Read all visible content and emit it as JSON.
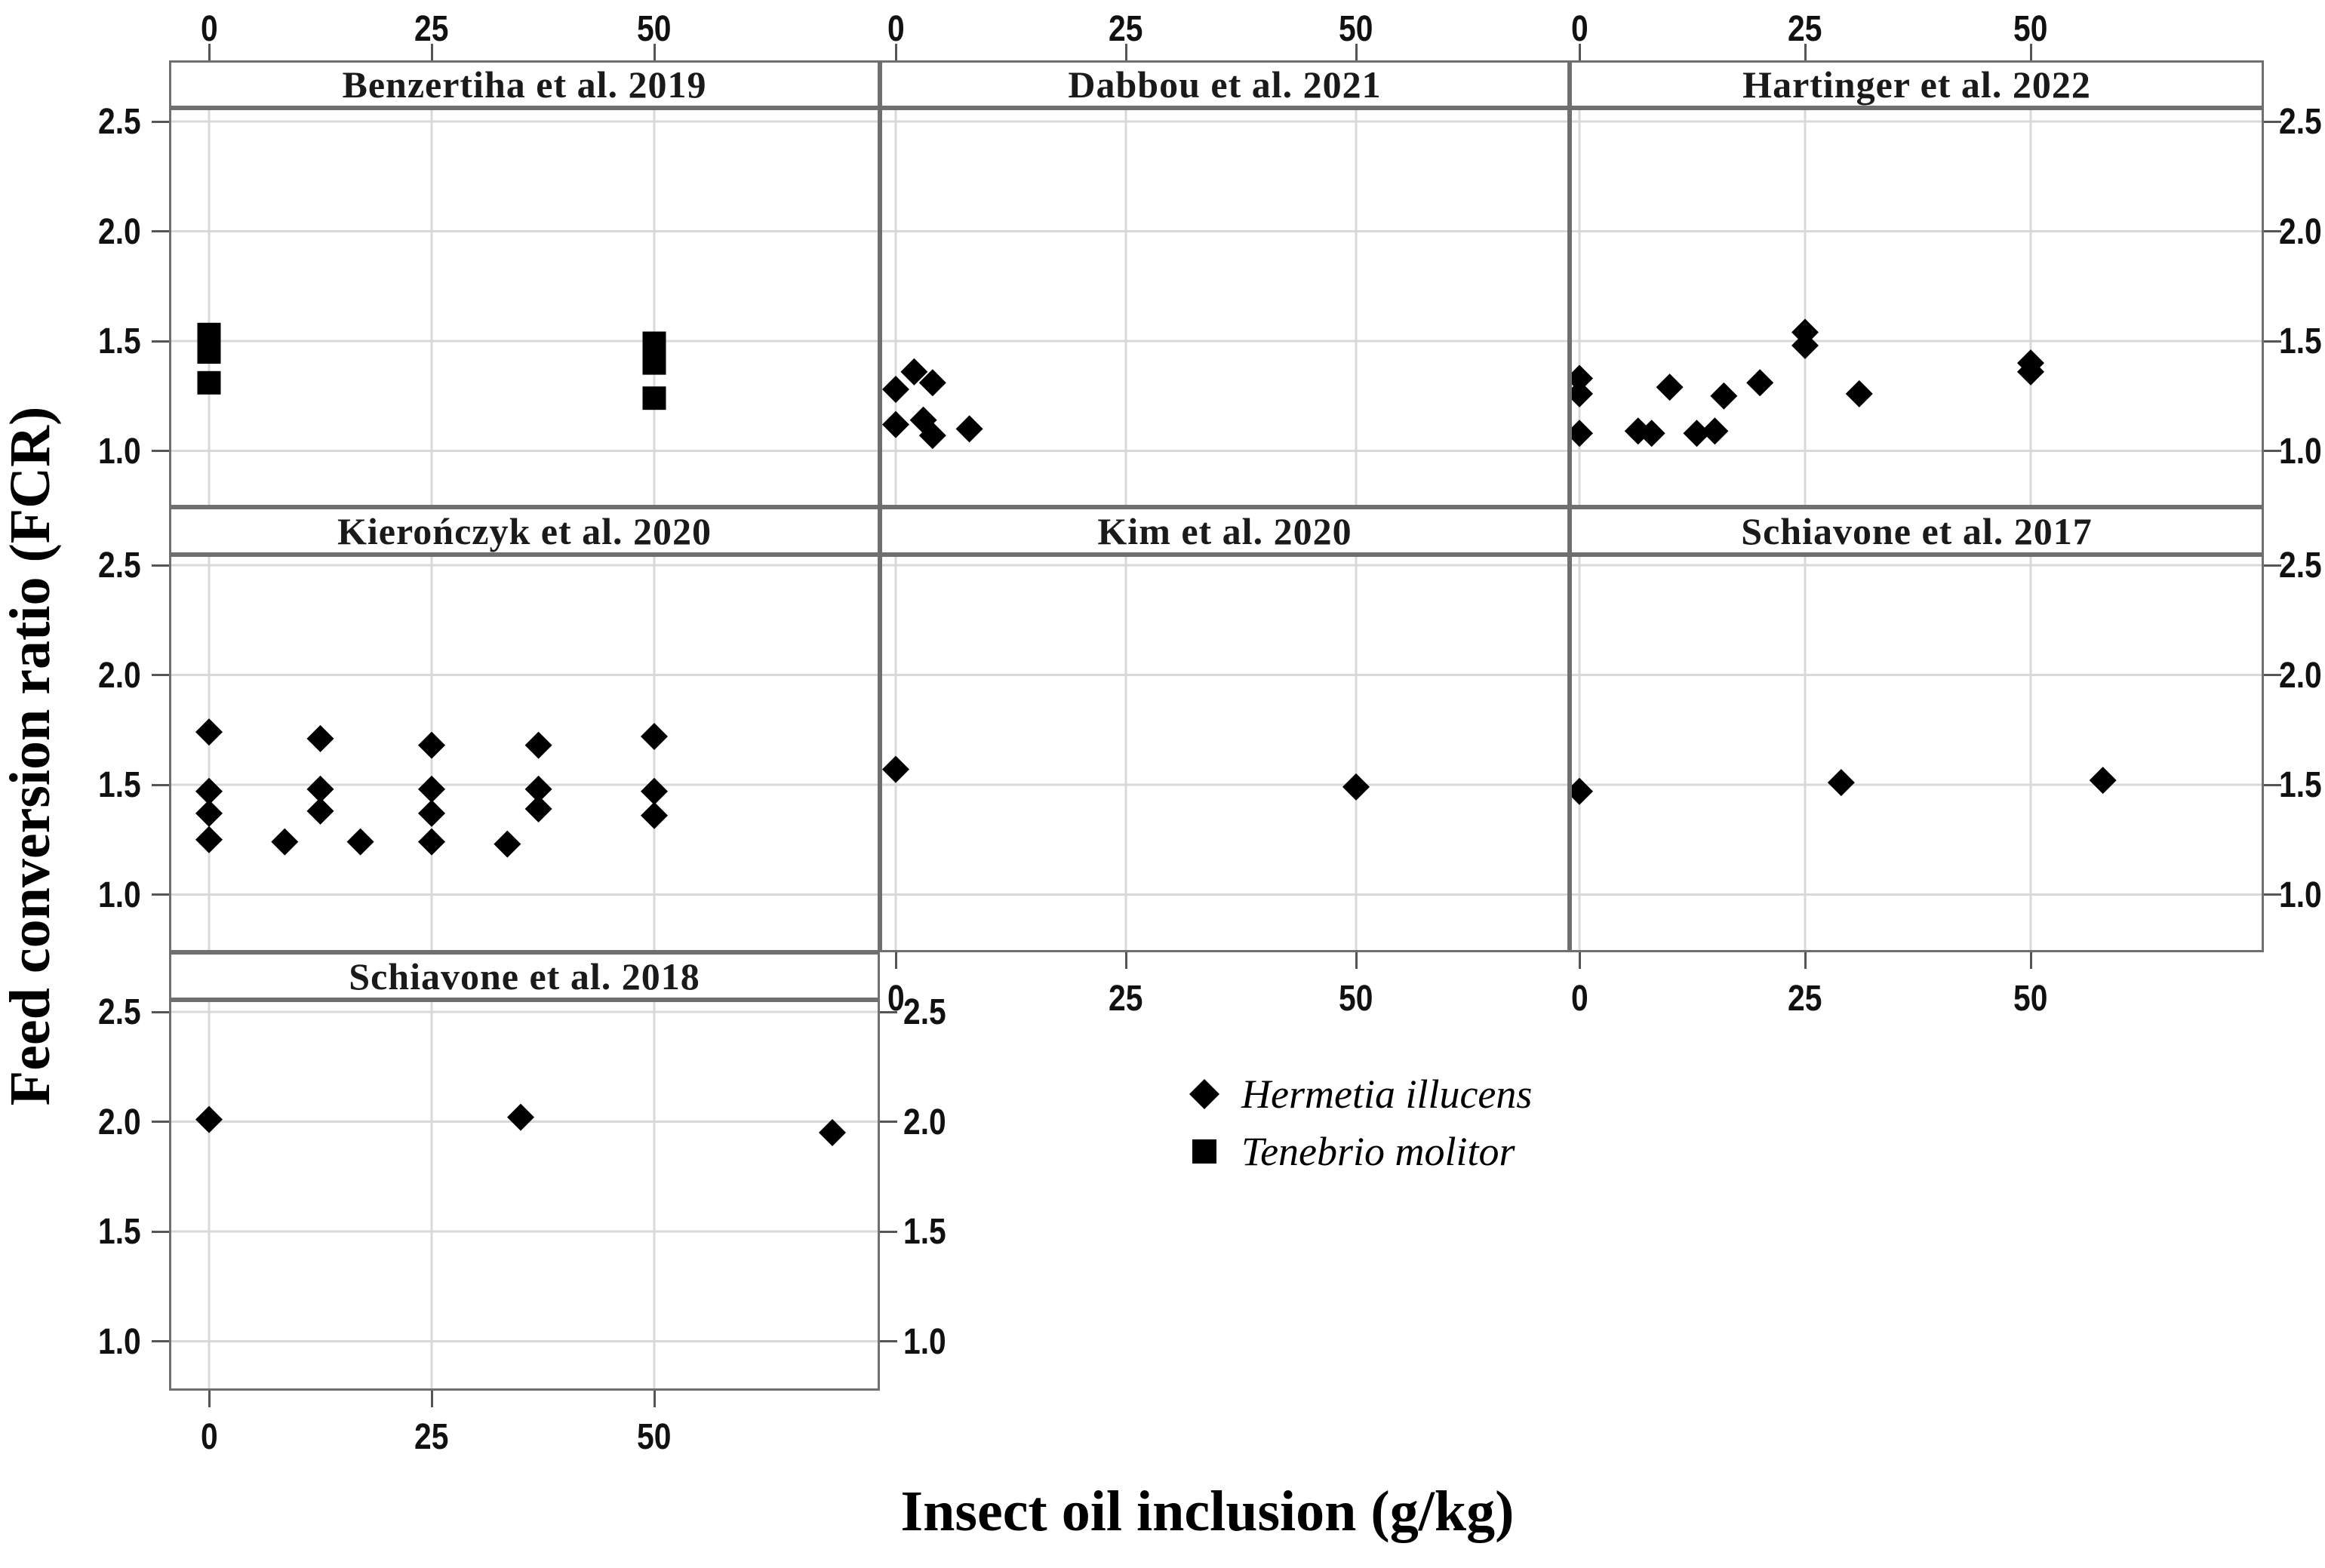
{
  "axes": {
    "x_title": "Insect oil inclusion (g/kg)",
    "y_title": "Feed conversion ratio (FCR)"
  },
  "legend": {
    "items": [
      {
        "label": "Hermetia illucens",
        "marker": "diamond"
      },
      {
        "label": "Tenebrio molitor",
        "marker": "square"
      }
    ]
  },
  "chart_data": {
    "type": "scatter",
    "faceted": true,
    "facet_by": "study",
    "x_label": "Insect oil inclusion (g/kg)",
    "y_label": "Feed conversion ratio (FCR)",
    "x_ticks": [
      {
        "v": 0,
        "label": "0"
      },
      {
        "v": 25,
        "label": "25"
      },
      {
        "v": 50,
        "label": "50"
      }
    ],
    "y_ticks": [
      {
        "v": 2.5,
        "label": "2.5"
      },
      {
        "v": 2.0,
        "label": "2.0"
      },
      {
        "v": 1.5,
        "label": "1.5"
      },
      {
        "v": 1.0,
        "label": "1.0"
      }
    ],
    "x_range": [
      -4.5,
      73
    ],
    "y_range": [
      0.74,
      2.56
    ],
    "grid": true,
    "marker_color": "#000000",
    "gridline_color": "#d9d9d9",
    "species_by_marker": {
      "diamond": "Hermetia illucens",
      "square": "Tenebrio molitor"
    },
    "point_format": [
      "inclusion_g_per_kg",
      "fcr",
      "marker"
    ],
    "panels": [
      {
        "title": "Benzertiha et al. 2019",
        "row": 0,
        "col": 0,
        "points": [
          [
            0,
            1.53,
            "square"
          ],
          [
            0,
            1.45,
            "square"
          ],
          [
            0,
            1.31,
            "square"
          ],
          [
            50,
            1.49,
            "square"
          ],
          [
            50,
            1.4,
            "square"
          ],
          [
            50,
            1.24,
            "square"
          ]
        ]
      },
      {
        "title": "Dabbou et al. 2021",
        "row": 0,
        "col": 1,
        "points": [
          [
            2,
            1.36,
            "diamond"
          ],
          [
            0,
            1.28,
            "diamond"
          ],
          [
            4,
            1.31,
            "diamond"
          ],
          [
            0,
            1.12,
            "diamond"
          ],
          [
            3,
            1.14,
            "diamond"
          ],
          [
            4,
            1.07,
            "diamond"
          ],
          [
            8,
            1.1,
            "diamond"
          ]
        ]
      },
      {
        "title": "Hartinger et al. 2022",
        "row": 0,
        "col": 2,
        "points": [
          [
            0,
            1.33,
            "diamond"
          ],
          [
            0,
            1.26,
            "diamond"
          ],
          [
            0,
            1.08,
            "diamond"
          ],
          [
            6.5,
            1.09,
            "diamond"
          ],
          [
            8,
            1.08,
            "diamond"
          ],
          [
            10,
            1.29,
            "diamond"
          ],
          [
            13,
            1.08,
            "diamond"
          ],
          [
            15,
            1.09,
            "diamond"
          ],
          [
            16,
            1.25,
            "diamond"
          ],
          [
            20,
            1.31,
            "diamond"
          ],
          [
            25,
            1.54,
            "diamond"
          ],
          [
            25,
            1.48,
            "diamond"
          ],
          [
            31,
            1.26,
            "diamond"
          ],
          [
            50,
            1.4,
            "diamond"
          ],
          [
            50,
            1.36,
            "diamond"
          ]
        ]
      },
      {
        "title": "Kierończyk et al. 2020",
        "row": 1,
        "col": 0,
        "points": [
          [
            0,
            1.74,
            "diamond"
          ],
          [
            0,
            1.47,
            "diamond"
          ],
          [
            0,
            1.37,
            "diamond"
          ],
          [
            0,
            1.25,
            "diamond"
          ],
          [
            8.5,
            1.24,
            "diamond"
          ],
          [
            12.5,
            1.71,
            "diamond"
          ],
          [
            12.5,
            1.48,
            "diamond"
          ],
          [
            12.5,
            1.38,
            "diamond"
          ],
          [
            17,
            1.24,
            "diamond"
          ],
          [
            25,
            1.68,
            "diamond"
          ],
          [
            25,
            1.48,
            "diamond"
          ],
          [
            25,
            1.37,
            "diamond"
          ],
          [
            25,
            1.24,
            "diamond"
          ],
          [
            33.5,
            1.23,
            "diamond"
          ],
          [
            37,
            1.68,
            "diamond"
          ],
          [
            37,
            1.48,
            "diamond"
          ],
          [
            37,
            1.39,
            "diamond"
          ],
          [
            50,
            1.72,
            "diamond"
          ],
          [
            50,
            1.47,
            "diamond"
          ],
          [
            50,
            1.36,
            "diamond"
          ]
        ]
      },
      {
        "title": "Kim et al. 2020",
        "row": 1,
        "col": 1,
        "points": [
          [
            0,
            1.57,
            "diamond"
          ],
          [
            50,
            1.49,
            "diamond"
          ]
        ]
      },
      {
        "title": "Schiavone et al. 2017",
        "row": 1,
        "col": 2,
        "points": [
          [
            0,
            1.47,
            "diamond"
          ],
          [
            29,
            1.51,
            "diamond"
          ],
          [
            58,
            1.52,
            "diamond"
          ]
        ]
      },
      {
        "title": "Schiavone et al. 2018",
        "row": 2,
        "col": 0,
        "points": [
          [
            0,
            2.01,
            "diamond"
          ],
          [
            35,
            2.02,
            "diamond"
          ],
          [
            70,
            1.95,
            "diamond"
          ]
        ]
      }
    ]
  }
}
